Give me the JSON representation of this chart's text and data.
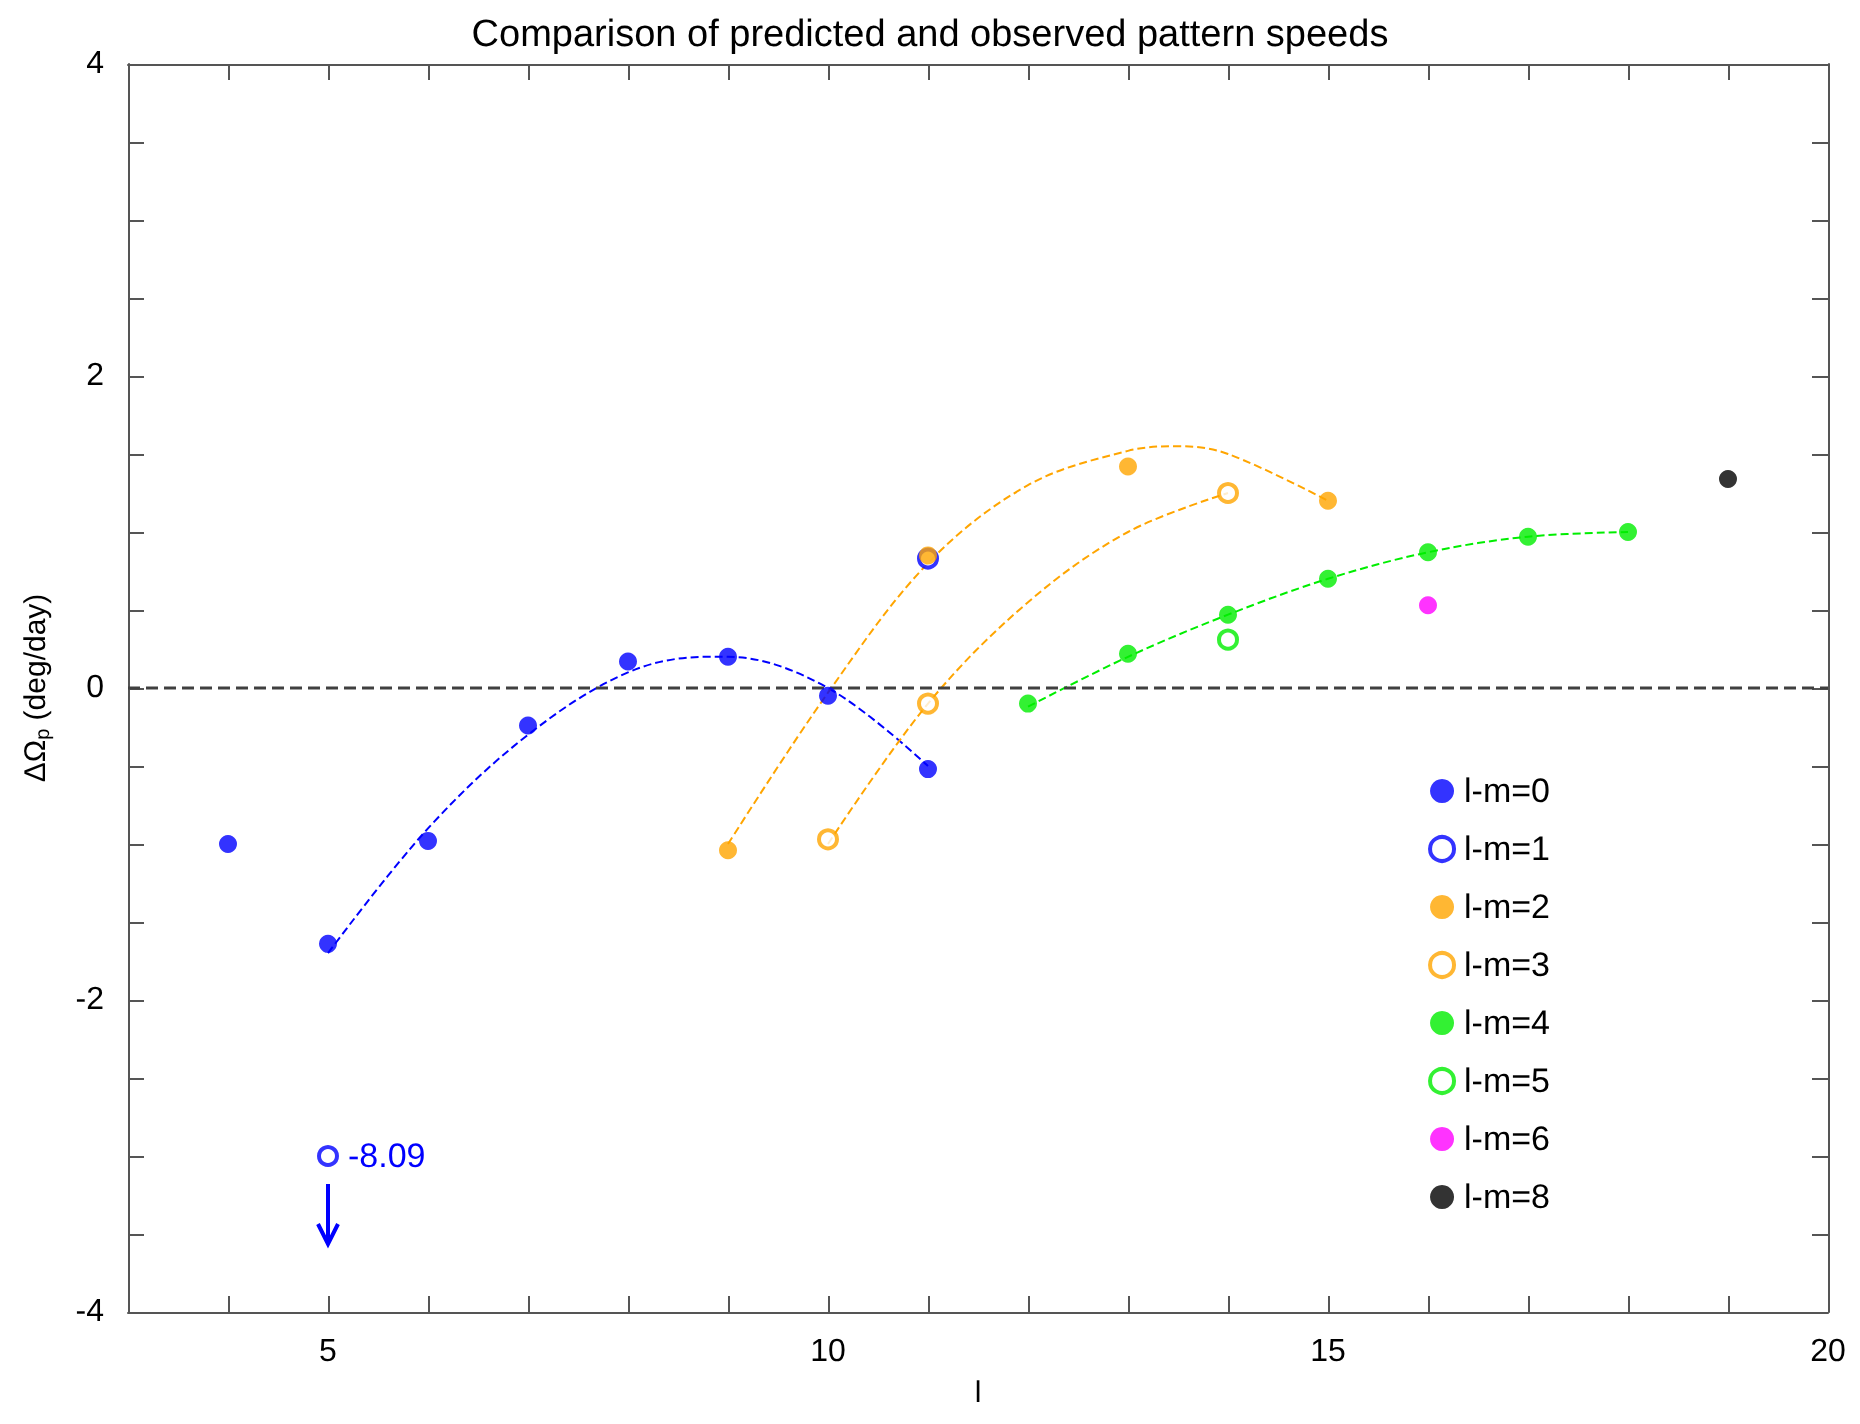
{
  "chart_data": {
    "type": "scatter",
    "title": "Comparison of predicted and observed pattern speeds",
    "xlabel": "l",
    "ylabel": "ΔΩ$_{p}$ (deg/day)",
    "xlim": [
      3,
      20
    ],
    "xticks": [
      {
        "value": 4,
        "label": null
      },
      5,
      {
        "value": 6,
        "label": null
      },
      {
        "value": 7,
        "label": null
      },
      {
        "value": 8,
        "label": null
      },
      {
        "value": 9,
        "label": null
      },
      10,
      {
        "value": 11,
        "label": null
      },
      {
        "value": 12,
        "label": null
      },
      {
        "value": 13,
        "label": null
      },
      {
        "value": 14,
        "label": null
      },
      15,
      {
        "value": 16,
        "label": null
      },
      {
        "value": 17,
        "label": null
      },
      {
        "value": 18,
        "label": null
      },
      {
        "value": 19,
        "label": null
      },
      20
    ],
    "ylim": [
      -4,
      4
    ],
    "yticks": [
      -4,
      {
        "value": -3.5,
        "label": null
      },
      {
        "value": -3,
        "label": null
      },
      {
        "value": -2.5,
        "label": null
      },
      -2,
      {
        "value": -1.5,
        "label": null
      },
      {
        "value": -1,
        "label": null
      },
      {
        "value": -0.5,
        "label": null
      },
      0,
      {
        "value": 0.5,
        "label": null
      },
      {
        "value": 1,
        "label": null
      },
      {
        "value": 1.5,
        "label": null
      },
      2,
      {
        "value": 2.5,
        "label": null
      },
      {
        "value": 3,
        "label": null
      },
      {
        "value": 3.5,
        "label": null
      },
      4
    ],
    "grid": false,
    "legend": "bottom right",
    "marker": "circle",
    "ref_lines": [
      {
        "axis": "y",
        "value": 0,
        "color": "#404040",
        "line_style": "dashed"
      }
    ],
    "annotations": [
      {
        "text": "-8.09",
        "x": 5,
        "y": -3
      }
    ],
    "series": [
      {
        "name": "l-m=0",
        "color": "#0000ff",
        "x": [
          4,
          5,
          6,
          7,
          8,
          9,
          10,
          11
        ],
        "values": [
          -1.0,
          -1.64,
          -0.98,
          -0.24,
          0.17,
          0.2,
          -0.05,
          -0.52
        ]
      },
      {
        "name": "l-m=1",
        "color": "#0000ff",
        "marker": "circle-open",
        "x": [
          11,
          5
        ],
        "values": [
          0.83,
          -3.0
        ]
      },
      {
        "name": "l-m=2",
        "color": "#ffa500",
        "x": [
          9,
          11,
          13,
          15
        ],
        "values": [
          -1.04,
          0.85,
          1.42,
          1.2
        ]
      },
      {
        "name": "l-m=3",
        "color": "#ffa500",
        "marker": "circle-open",
        "x": [
          10,
          11,
          14
        ],
        "values": [
          -0.97,
          -0.1,
          1.25
        ]
      },
      {
        "name": "l-m=4",
        "color": "#00ee00",
        "x": [
          12,
          13,
          14,
          15,
          16,
          17,
          18
        ],
        "values": [
          -0.1,
          0.22,
          0.47,
          0.7,
          0.87,
          0.97,
          1.0
        ]
      },
      {
        "name": "l-m=5",
        "color": "#00ee00",
        "marker": "circle-open",
        "x": [
          14
        ],
        "values": [
          0.31
        ]
      },
      {
        "name": "l-m=6",
        "color": "#ff00ff",
        "x": [
          16
        ],
        "values": [
          0.53
        ]
      },
      {
        "name": "l-m=8",
        "color": "#000000",
        "x": [
          19
        ],
        "values": [
          1.34
        ]
      },
      {
        "type": "line",
        "color": "#0000ff",
        "line_style": "dashed",
        "marker": "none",
        "x": [
          5,
          6,
          7,
          8,
          8.8,
          9,
          10,
          11
        ],
        "values": [
          -1.7,
          -0.9,
          -0.3,
          0.1,
          0.2,
          0.2,
          0,
          -0.5
        ]
      },
      {
        "type": "line",
        "color": "#ffa500",
        "line_style": "dashed",
        "marker": "none",
        "x": [
          9,
          10,
          11,
          12,
          13,
          13.5,
          14,
          15
        ],
        "values": [
          -1.0,
          -0.03,
          0.8,
          1.3,
          1.52,
          1.55,
          1.5,
          1.2
        ]
      },
      {
        "type": "line",
        "color": "#ffa500",
        "line_style": "dashed",
        "marker": "none",
        "x": [
          10,
          11,
          12,
          13,
          14
        ],
        "values": [
          -1.0,
          -0.1,
          0.55,
          1.0,
          1.25
        ]
      },
      {
        "type": "line",
        "color": "#00ee00",
        "line_style": "dashed",
        "marker": "none",
        "x": [
          12,
          13,
          14,
          15,
          16,
          17,
          18
        ],
        "values": [
          -0.12,
          0.2,
          0.47,
          0.7,
          0.87,
          0.97,
          1.0
        ]
      }
    ]
  }
}
